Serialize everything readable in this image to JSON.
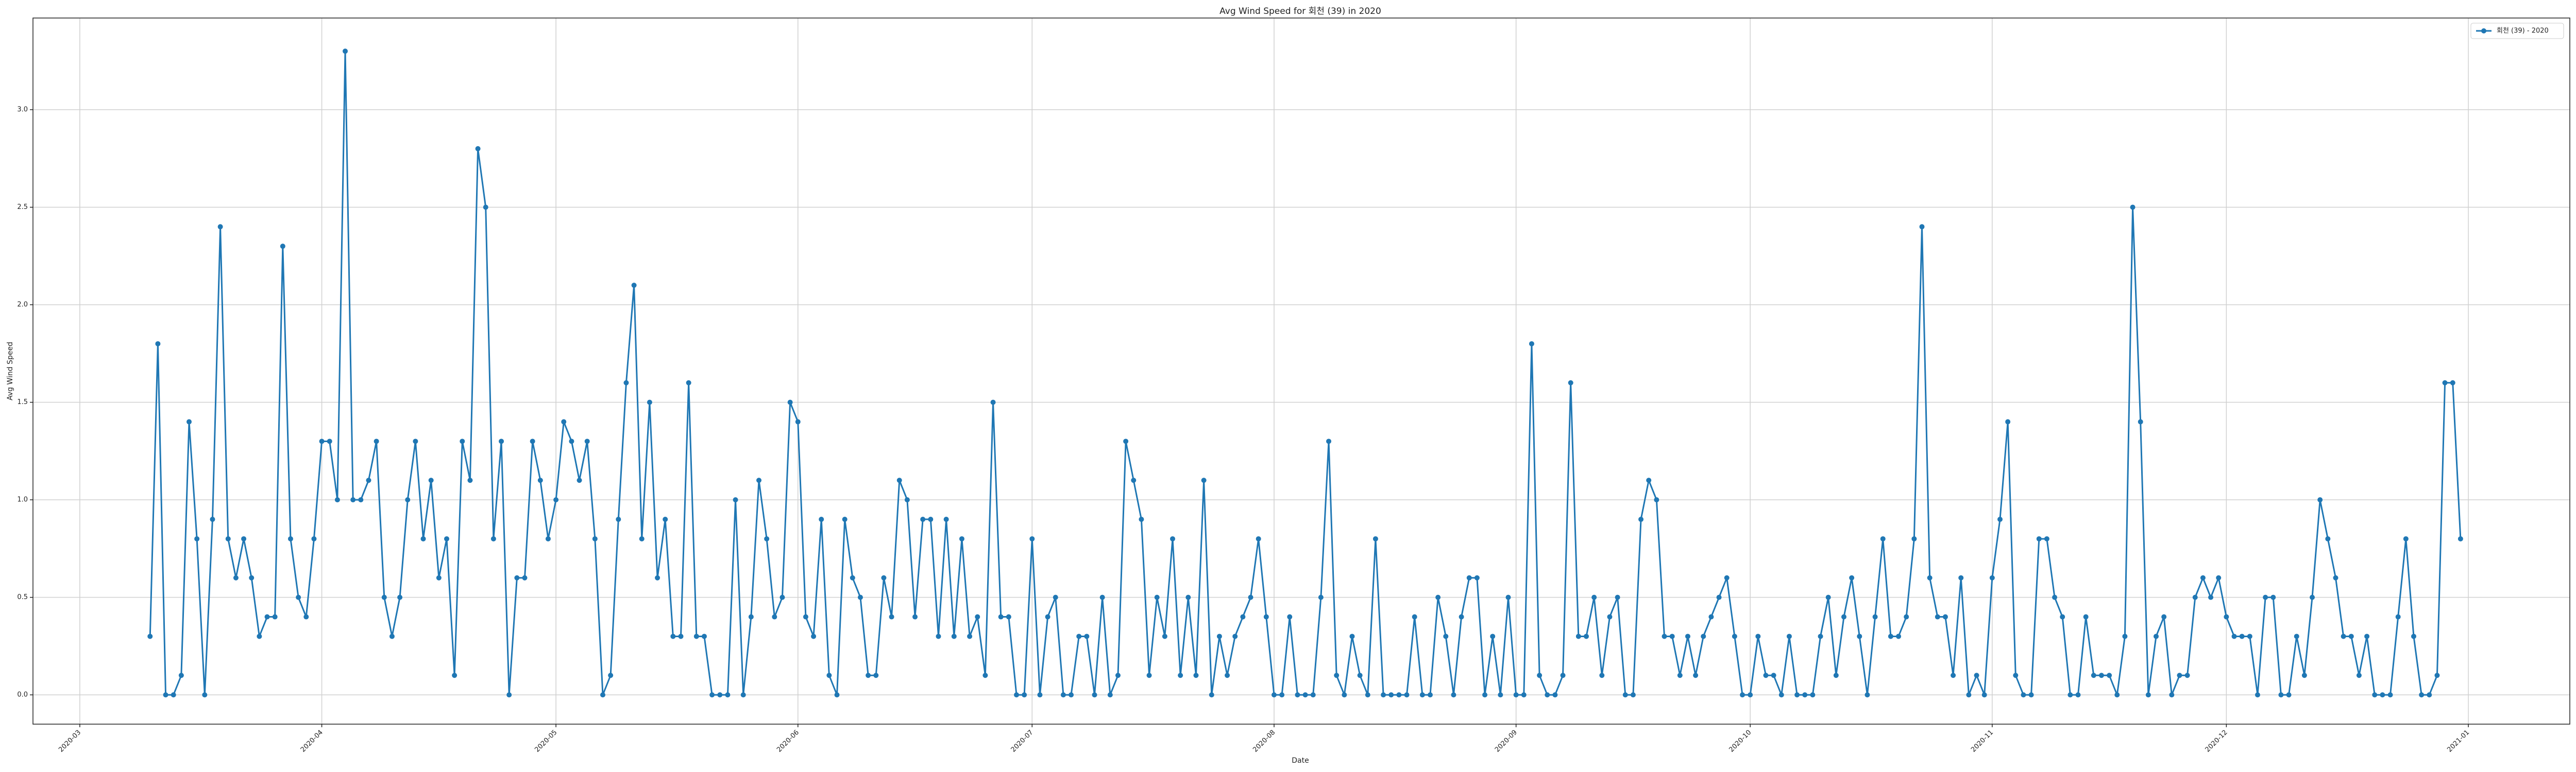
{
  "chart_data": {
    "type": "line",
    "title": "Avg Wind Speed for 회천 (39) in 2020",
    "x_label": "Date",
    "y_label": "Avg Wind Speed",
    "x": [
      "2020-03-10",
      "2020-03-11",
      "2020-03-12",
      "2020-03-13",
      "2020-03-14",
      "2020-03-15",
      "2020-03-16",
      "2020-03-17",
      "2020-03-18",
      "2020-03-19",
      "2020-03-20",
      "2020-03-21",
      "2020-03-22",
      "2020-03-23",
      "2020-03-24",
      "2020-03-25",
      "2020-03-26",
      "2020-03-27",
      "2020-03-28",
      "2020-03-29",
      "2020-03-30",
      "2020-03-31",
      "2020-04-01",
      "2020-04-02",
      "2020-04-03",
      "2020-04-04",
      "2020-04-05",
      "2020-04-06",
      "2020-04-07",
      "2020-04-08",
      "2020-04-09",
      "2020-04-10",
      "2020-04-11",
      "2020-04-12",
      "2020-04-13",
      "2020-04-14",
      "2020-04-15",
      "2020-04-16",
      "2020-04-17",
      "2020-04-18",
      "2020-04-19",
      "2020-04-20",
      "2020-04-21",
      "2020-04-22",
      "2020-04-23",
      "2020-04-24",
      "2020-04-25",
      "2020-04-26",
      "2020-04-27",
      "2020-04-28",
      "2020-04-29",
      "2020-04-30",
      "2020-05-01",
      "2020-05-02",
      "2020-05-03",
      "2020-05-04",
      "2020-05-05",
      "2020-05-06",
      "2020-05-07",
      "2020-05-08",
      "2020-05-09",
      "2020-05-10",
      "2020-05-11",
      "2020-05-12",
      "2020-05-13",
      "2020-05-14",
      "2020-05-15",
      "2020-05-16",
      "2020-05-17",
      "2020-05-18",
      "2020-05-19",
      "2020-05-20",
      "2020-05-21",
      "2020-05-22",
      "2020-05-23",
      "2020-05-24",
      "2020-05-25",
      "2020-05-26",
      "2020-05-27",
      "2020-05-28",
      "2020-05-29",
      "2020-05-30",
      "2020-05-31",
      "2020-06-01",
      "2020-06-02",
      "2020-06-03",
      "2020-06-04",
      "2020-06-05",
      "2020-06-06",
      "2020-06-07",
      "2020-06-08",
      "2020-06-09",
      "2020-06-10",
      "2020-06-11",
      "2020-06-12",
      "2020-06-13",
      "2020-06-14",
      "2020-06-15",
      "2020-06-16",
      "2020-06-17",
      "2020-06-18",
      "2020-06-19",
      "2020-06-20",
      "2020-06-21",
      "2020-06-22",
      "2020-06-23",
      "2020-06-24",
      "2020-06-25",
      "2020-06-26",
      "2020-06-27",
      "2020-06-28",
      "2020-06-29",
      "2020-06-30",
      "2020-07-01",
      "2020-07-02",
      "2020-07-03",
      "2020-07-04",
      "2020-07-05",
      "2020-07-06",
      "2020-07-07",
      "2020-07-08",
      "2020-07-09",
      "2020-07-10",
      "2020-07-11",
      "2020-07-12",
      "2020-07-13",
      "2020-07-14",
      "2020-07-15",
      "2020-07-16",
      "2020-07-17",
      "2020-07-18",
      "2020-07-19",
      "2020-07-20",
      "2020-07-21",
      "2020-07-22",
      "2020-07-23",
      "2020-07-24",
      "2020-07-25",
      "2020-07-26",
      "2020-07-27",
      "2020-07-28",
      "2020-07-29",
      "2020-07-30",
      "2020-07-31",
      "2020-08-01",
      "2020-08-02",
      "2020-08-03",
      "2020-08-04",
      "2020-08-05",
      "2020-08-06",
      "2020-08-07",
      "2020-08-08",
      "2020-08-09",
      "2020-08-10",
      "2020-08-11",
      "2020-08-12",
      "2020-08-13",
      "2020-08-14",
      "2020-08-15",
      "2020-08-16",
      "2020-08-17",
      "2020-08-18",
      "2020-08-19",
      "2020-08-20",
      "2020-08-21",
      "2020-08-22",
      "2020-08-23",
      "2020-08-24",
      "2020-08-25",
      "2020-08-26",
      "2020-08-27",
      "2020-08-28",
      "2020-08-29",
      "2020-08-30",
      "2020-08-31",
      "2020-09-01",
      "2020-09-02",
      "2020-09-03",
      "2020-09-04",
      "2020-09-05",
      "2020-09-06",
      "2020-09-07",
      "2020-09-08",
      "2020-09-09",
      "2020-09-10",
      "2020-09-11",
      "2020-09-12",
      "2020-09-13",
      "2020-09-14",
      "2020-09-15",
      "2020-09-16",
      "2020-09-17",
      "2020-09-18",
      "2020-09-19",
      "2020-09-20",
      "2020-09-21",
      "2020-09-22",
      "2020-09-23",
      "2020-09-24",
      "2020-09-25",
      "2020-09-26",
      "2020-09-27",
      "2020-09-28",
      "2020-09-29",
      "2020-09-30",
      "2020-10-01",
      "2020-10-02",
      "2020-10-03",
      "2020-10-04",
      "2020-10-05",
      "2020-10-06",
      "2020-10-07",
      "2020-10-08",
      "2020-10-09",
      "2020-10-10",
      "2020-10-11",
      "2020-10-12",
      "2020-10-13",
      "2020-10-14",
      "2020-10-15",
      "2020-10-16",
      "2020-10-17",
      "2020-10-18",
      "2020-10-19",
      "2020-10-20",
      "2020-10-21",
      "2020-10-22",
      "2020-10-23",
      "2020-10-24",
      "2020-10-25",
      "2020-10-26",
      "2020-10-27",
      "2020-10-28",
      "2020-10-29",
      "2020-10-30",
      "2020-10-31",
      "2020-11-01",
      "2020-11-02",
      "2020-11-03",
      "2020-11-04",
      "2020-11-05",
      "2020-11-06",
      "2020-11-07",
      "2020-11-08",
      "2020-11-09",
      "2020-11-10",
      "2020-11-11",
      "2020-11-12",
      "2020-11-13",
      "2020-11-14",
      "2020-11-15",
      "2020-11-16",
      "2020-11-17",
      "2020-11-18",
      "2020-11-19",
      "2020-11-20",
      "2020-11-21",
      "2020-11-22",
      "2020-11-23",
      "2020-11-24",
      "2020-11-25",
      "2020-11-26",
      "2020-11-27",
      "2020-11-28",
      "2020-11-29",
      "2020-11-30",
      "2020-12-01",
      "2020-12-02",
      "2020-12-03",
      "2020-12-04",
      "2020-12-05",
      "2020-12-06",
      "2020-12-07",
      "2020-12-08",
      "2020-12-09",
      "2020-12-10",
      "2020-12-11",
      "2020-12-12",
      "2020-12-13",
      "2020-12-14",
      "2020-12-15",
      "2020-12-16",
      "2020-12-17",
      "2020-12-18",
      "2020-12-19",
      "2020-12-20",
      "2020-12-21",
      "2020-12-22",
      "2020-12-23",
      "2020-12-24",
      "2020-12-25",
      "2020-12-26",
      "2020-12-27",
      "2020-12-28",
      "2020-12-29",
      "2020-12-30",
      "2020-12-31"
    ],
    "series": [
      {
        "name": "회천 (39) - 2020",
        "color": "#1f77b4",
        "values": [
          0.3,
          1.8,
          0,
          0,
          0.1,
          1.4,
          0.8,
          0,
          0.9,
          2.4,
          0.8,
          0.6,
          0.8,
          0.6,
          0.3,
          0.4,
          0.4,
          2.3,
          0.8,
          0.5,
          0.4,
          0.8,
          1.3,
          1.3,
          1.0,
          3.3,
          1.0,
          1.0,
          1.1,
          1.3,
          0.5,
          0.3,
          0.5,
          1.0,
          1.3,
          0.8,
          1.1,
          0.6,
          0.8,
          0.1,
          1.3,
          1.1,
          2.8,
          2.5,
          0.8,
          1.3,
          0,
          0.6,
          0.6,
          1.3,
          1.1,
          0.8,
          1.0,
          1.4,
          1.3,
          1.1,
          1.3,
          0.8,
          0,
          0.1,
          0.9,
          1.6,
          2.1,
          0.8,
          1.5,
          0.6,
          0.9,
          0.3,
          0.3,
          1.6,
          0.3,
          0.3,
          0,
          0,
          0,
          1.0,
          0,
          0.4,
          1.1,
          0.8,
          0.4,
          0.5,
          1.5,
          1.4,
          0.4,
          0.3,
          0.9,
          0.1,
          0,
          0.9,
          0.6,
          0.5,
          0.1,
          0.1,
          0.6,
          0.4,
          1.1,
          1.0,
          0.4,
          0.9,
          0.9,
          0.3,
          0.9,
          0.3,
          0.8,
          0.3,
          0.4,
          0.1,
          1.5,
          0.4,
          0.4,
          0,
          0,
          0.8,
          0,
          0.4,
          0.5,
          0,
          0,
          0.3,
          0.3,
          0,
          0.5,
          0,
          0.1,
          1.3,
          1.1,
          0.9,
          0.1,
          0.5,
          0.3,
          0.8,
          0.1,
          0.5,
          0.1,
          1.1,
          0,
          0.3,
          0.1,
          0.3,
          0.4,
          0.5,
          0.8,
          0.4,
          0,
          0,
          0.4,
          0,
          0,
          0,
          0.5,
          1.3,
          0.1,
          0,
          0.3,
          0.1,
          0,
          0.8,
          0,
          0,
          0,
          0,
          0.4,
          0,
          0,
          0.5,
          0.3,
          0,
          0.4,
          0.6,
          0.6,
          0,
          0.3,
          0,
          0.5,
          0,
          0,
          1.8,
          0.1,
          0,
          0,
          0.1,
          1.6,
          0.3,
          0.3,
          0.5,
          0.1,
          0.4,
          0.5,
          0,
          0,
          0.9,
          1.1,
          1.0,
          0.3,
          0.3,
          0.1,
          0.3,
          0.1,
          0.3,
          0.4,
          0.5,
          0.6,
          0.3,
          0,
          0,
          0.3,
          0.1,
          0.1,
          0,
          0.3,
          0,
          0,
          0,
          0.3,
          0.5,
          0.1,
          0.4,
          0.6,
          0.3,
          0,
          0.4,
          0.8,
          0.3,
          0.3,
          0.4,
          0.8,
          2.4,
          0.6,
          0.4,
          0.4,
          0.1,
          0.6,
          0,
          0.1,
          0,
          0.6,
          0.9,
          1.4,
          0.1,
          0,
          0,
          0.8,
          0.8,
          0.5,
          0.4,
          0,
          0,
          0.4,
          0.1,
          0.1,
          0.1,
          0,
          0.3,
          2.5,
          1.4,
          0,
          0.3,
          0.4,
          0,
          0.1,
          0.1,
          0.5,
          0.6,
          0.5,
          0.6,
          0.4,
          0.3,
          0.3,
          0.3,
          0,
          0.5,
          0.5,
          0,
          0,
          0.3,
          0.1,
          0.5,
          1.0,
          0.8,
          0.6,
          0.3,
          0.3,
          0.1,
          0.3,
          0,
          0,
          0,
          0.4,
          0.8,
          0.3,
          0,
          0,
          0.1,
          1.6,
          1.6,
          0.8
        ]
      }
    ],
    "xlim": [
      "2020-02-24",
      "2021-01-14"
    ],
    "xticks": [
      {
        "value": "2020-03-01",
        "label": "2020-03"
      },
      {
        "value": "2020-04-01",
        "label": "2020-04"
      },
      {
        "value": "2020-05-01",
        "label": "2020-05"
      },
      {
        "value": "2020-06-01",
        "label": "2020-06"
      },
      {
        "value": "2020-07-01",
        "label": "2020-07"
      },
      {
        "value": "2020-08-01",
        "label": "2020-08"
      },
      {
        "value": "2020-09-01",
        "label": "2020-09"
      },
      {
        "value": "2020-10-01",
        "label": "2020-10"
      },
      {
        "value": "2020-11-01",
        "label": "2020-11"
      },
      {
        "value": "2020-12-01",
        "label": "2020-12"
      },
      {
        "value": "2021-01-01",
        "label": "2021-01"
      }
    ],
    "ylim": [
      -0.15,
      3.47
    ],
    "yticks": [
      {
        "value": 0,
        "label": "0.0"
      },
      0.5,
      {
        "value": 1,
        "label": "1.0"
      },
      1.5,
      {
        "value": 2,
        "label": "2.0"
      },
      2.5,
      {
        "value": 3,
        "label": "3.0"
      }
    ],
    "grid": true,
    "legend": "upper right"
  }
}
